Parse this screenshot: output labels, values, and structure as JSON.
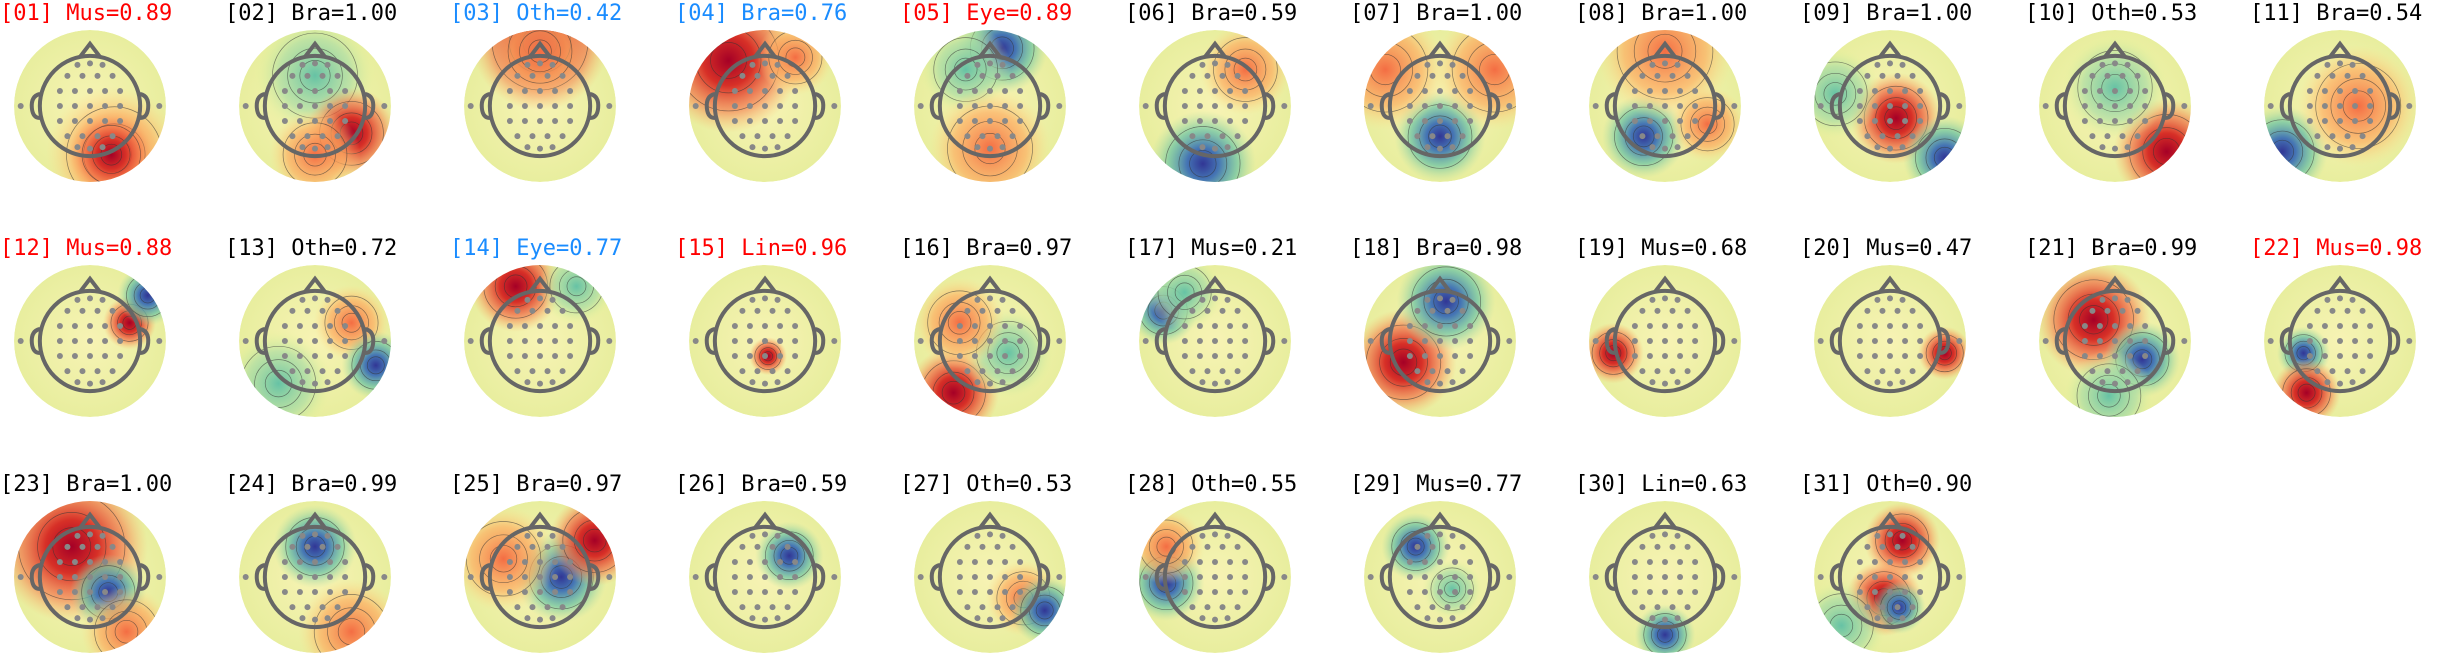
{
  "components": [
    {
      "label": "[01] Mus=0.89",
      "color": "#ff0000"
    },
    {
      "label": "[02] Bra=1.00",
      "color": "#000000"
    },
    {
      "label": "[03] Oth=0.42",
      "color": "#1a8cff"
    },
    {
      "label": "[04] Bra=0.76",
      "color": "#1a8cff"
    },
    {
      "label": "[05] Eye=0.89",
      "color": "#ff0000"
    },
    {
      "label": "[06] Bra=0.59",
      "color": "#000000"
    },
    {
      "label": "[07] Bra=1.00",
      "color": "#000000"
    },
    {
      "label": "[08] Bra=1.00",
      "color": "#000000"
    },
    {
      "label": "[09] Bra=1.00",
      "color": "#000000"
    },
    {
      "label": "[10] Oth=0.53",
      "color": "#000000"
    },
    {
      "label": "[11] Bra=0.54",
      "color": "#000000"
    },
    {
      "label": "[12] Mus=0.88",
      "color": "#ff0000"
    },
    {
      "label": "[13] Oth=0.72",
      "color": "#000000"
    },
    {
      "label": "[14] Eye=0.77",
      "color": "#1a8cff"
    },
    {
      "label": "[15] Lin=0.96",
      "color": "#ff0000"
    },
    {
      "label": "[16] Bra=0.97",
      "color": "#000000"
    },
    {
      "label": "[17] Mus=0.21",
      "color": "#000000"
    },
    {
      "label": "[18] Bra=0.98",
      "color": "#000000"
    },
    {
      "label": "[19] Mus=0.68",
      "color": "#000000"
    },
    {
      "label": "[20] Mus=0.47",
      "color": "#000000"
    },
    {
      "label": "[21] Bra=0.99",
      "color": "#000000"
    },
    {
      "label": "[22] Mus=0.98",
      "color": "#ff0000"
    },
    {
      "label": "[23] Bra=1.00",
      "color": "#000000"
    },
    {
      "label": "[24] Bra=0.99",
      "color": "#000000"
    },
    {
      "label": "[25] Bra=0.97",
      "color": "#000000"
    },
    {
      "label": "[26] Bra=0.59",
      "color": "#000000"
    },
    {
      "label": "[27] Oth=0.53",
      "color": "#000000"
    },
    {
      "label": "[28] Oth=0.55",
      "color": "#000000"
    },
    {
      "label": "[29] Mus=0.77",
      "color": "#000000"
    },
    {
      "label": "[30] Lin=0.63",
      "color": "#000000"
    },
    {
      "label": "[31] Oth=0.90",
      "color": "#000000"
    }
  ]
}
